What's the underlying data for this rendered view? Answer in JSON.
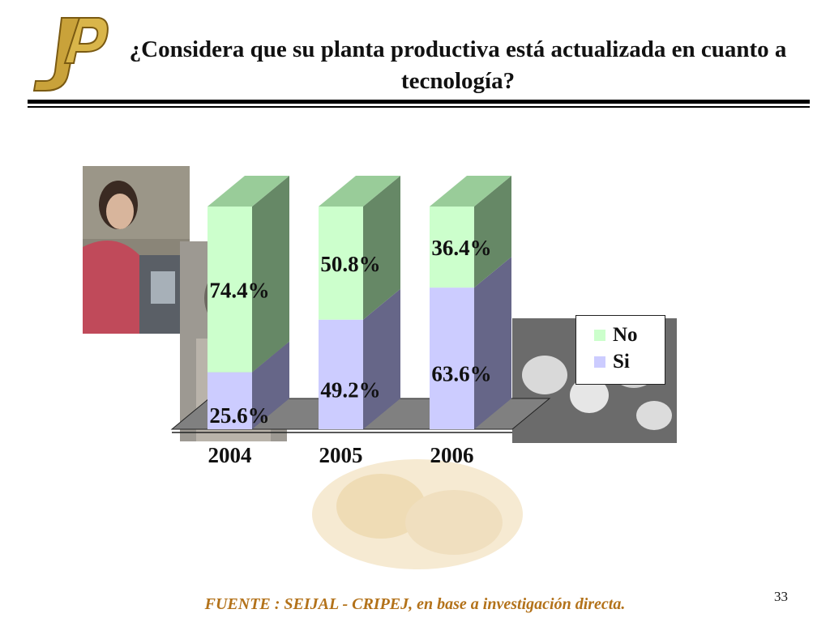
{
  "slide": {
    "title": "¿Considera que su planta productiva está actualizada en cuanto a tecnología?",
    "footer": "FUENTE :  SEIJAL - CRIPEJ,  en base a investigación directa.",
    "page_number": "33"
  },
  "colors": {
    "no_front": "#ccffcc",
    "no_side": "#668866",
    "no_top": "#99cc99",
    "si_front": "#ccccff",
    "si_side": "#666688",
    "floor": "#808080",
    "footer": "#b3721a",
    "logo_gold": "#c9a23a"
  },
  "chart_data": {
    "type": "bar",
    "stacked": true,
    "three_d": true,
    "categories": [
      "2004",
      "2005",
      "2006"
    ],
    "series": [
      {
        "name": "Si",
        "values": [
          25.6,
          49.2,
          63.6
        ],
        "labels": [
          "25.6%",
          "49.2%",
          "63.6%"
        ]
      },
      {
        "name": "No",
        "values": [
          74.4,
          50.8,
          36.4
        ],
        "labels": [
          "74.4%",
          "50.8%",
          "36.4%"
        ]
      }
    ],
    "legend": [
      {
        "name": "No"
      },
      {
        "name": "Si"
      }
    ],
    "ylim": [
      0,
      100
    ],
    "legend_position": "right",
    "grid": false
  }
}
